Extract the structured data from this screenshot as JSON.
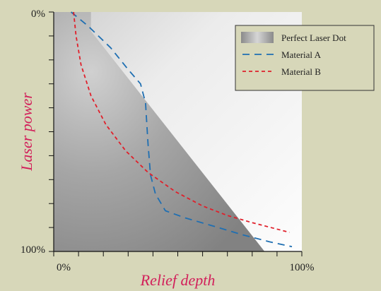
{
  "chart_data": {
    "type": "area",
    "title": "",
    "xlabel": "Relief depth",
    "ylabel": "Laser power",
    "x_tick_labels": [
      "0%",
      "100%"
    ],
    "y_tick_labels": [
      "0%",
      "100%"
    ],
    "xlim": [
      0,
      100
    ],
    "ylim": [
      0,
      100
    ],
    "y_inverted": true,
    "grid": false,
    "legend_position": "top-right",
    "colors": {
      "background": "#d7d7b9",
      "axis_title": "#d21f5a",
      "material_a": "#1f6fb2",
      "material_b": "#e01f2a",
      "region_dark": "#8c8c8c",
      "region_light": "#f4f4f4"
    },
    "series": [
      {
        "name": "Perfect Laser Dot",
        "style": "region",
        "points": [
          [
            0,
            0
          ],
          [
            15,
            0
          ],
          [
            15,
            8
          ],
          [
            85,
            100
          ],
          [
            0,
            100
          ]
        ]
      },
      {
        "name": "Material A",
        "style": "dashed",
        "color": "#1f6fb2",
        "points": [
          [
            7,
            0
          ],
          [
            14,
            6
          ],
          [
            23,
            15
          ],
          [
            30,
            24
          ],
          [
            35,
            30
          ],
          [
            37,
            38
          ],
          [
            38,
            55
          ],
          [
            39,
            68
          ],
          [
            41,
            76
          ],
          [
            45,
            83
          ],
          [
            53,
            86
          ],
          [
            63,
            89
          ],
          [
            76,
            93
          ],
          [
            87,
            96
          ],
          [
            96,
            98
          ]
        ]
      },
      {
        "name": "Material B",
        "style": "dotted-dashed",
        "color": "#e01f2a",
        "points": [
          [
            8,
            0
          ],
          [
            9,
            10
          ],
          [
            11,
            22
          ],
          [
            15,
            35
          ],
          [
            21,
            47
          ],
          [
            29,
            58
          ],
          [
            38,
            67
          ],
          [
            49,
            75
          ],
          [
            60,
            81
          ],
          [
            70,
            85
          ],
          [
            80,
            88
          ],
          [
            95,
            92
          ]
        ]
      }
    ],
    "legend": [
      {
        "label": "Perfect Laser Dot",
        "key": "region"
      },
      {
        "label": "Material A",
        "key": "material_a"
      },
      {
        "label": "Material B",
        "key": "material_b"
      }
    ]
  }
}
